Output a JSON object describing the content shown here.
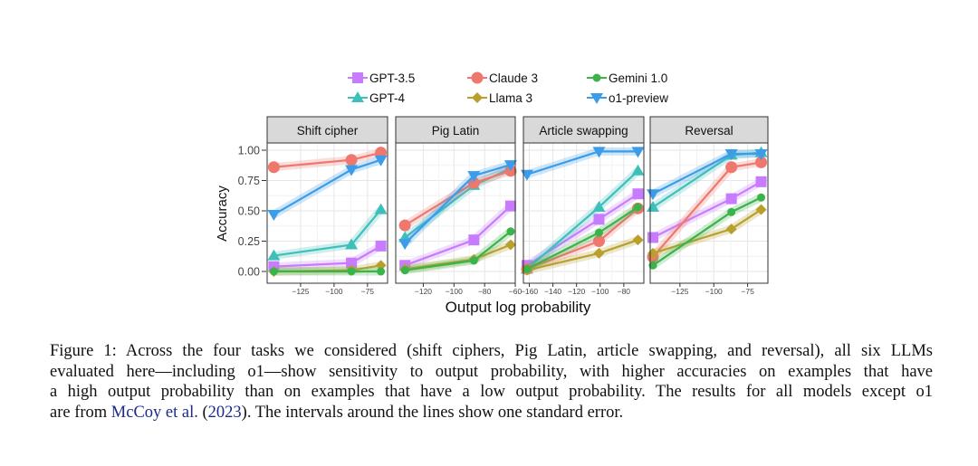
{
  "chart_data": {
    "type": "line",
    "ylabel": "Accuracy",
    "xlabel": "Output log probability",
    "ylim": [
      0,
      1
    ],
    "yticks": [
      "0.00",
      "0.25",
      "0.50",
      "0.75",
      "1.00"
    ],
    "grid": true,
    "legend_placement": "top",
    "legend": [
      {
        "name": "GPT-3.5",
        "color": "#c77cff",
        "marker": "square"
      },
      {
        "name": "Claude 3",
        "color": "#f0776e",
        "marker": "circle"
      },
      {
        "name": "Gemini 1.0",
        "color": "#3cb34a",
        "marker": "dot"
      },
      {
        "name": "GPT-4",
        "color": "#3fbfba",
        "marker": "triangle"
      },
      {
        "name": "Llama 3",
        "color": "#b9a02c",
        "marker": "diamond"
      },
      {
        "name": "o1-preview",
        "color": "#3c9ce8",
        "marker": "triangle-down"
      }
    ],
    "panels": [
      {
        "title": "Shift cipher",
        "xlim": [
          -150,
          -60
        ],
        "xticks": [
          -125,
          -100,
          -75
        ],
        "x": [
          -145,
          -87,
          -65
        ],
        "series": {
          "GPT-3.5": [
            0.04,
            0.07,
            0.21
          ],
          "GPT-4": [
            0.13,
            0.22,
            0.51
          ],
          "Claude 3": [
            0.86,
            0.92,
            0.98
          ],
          "Llama 3": [
            0.0,
            0.01,
            0.05
          ],
          "Gemini 1.0": [
            0.0,
            0.0,
            0.0
          ],
          "o1-preview": [
            0.47,
            0.84,
            0.92
          ]
        }
      },
      {
        "title": "Pig Latin",
        "xlim": [
          -138,
          -60
        ],
        "xticks": [
          -120,
          -100,
          -80,
          -60
        ],
        "x": [
          -132,
          -87,
          -63
        ],
        "series": {
          "GPT-3.5": [
            0.05,
            0.26,
            0.54
          ],
          "GPT-4": [
            0.28,
            0.71,
            0.85
          ],
          "Claude 3": [
            0.38,
            0.73,
            0.83
          ],
          "Llama 3": [
            0.02,
            0.1,
            0.22
          ],
          "Gemini 1.0": [
            0.01,
            0.09,
            0.33
          ],
          "o1-preview": [
            0.23,
            0.79,
            0.88
          ]
        }
      },
      {
        "title": "Article swapping",
        "xlim": [
          -165,
          -63
        ],
        "xticks": [
          -160,
          -140,
          -120,
          -100,
          -80
        ],
        "x": [
          -162,
          -101,
          -68
        ],
        "series": {
          "GPT-3.5": [
            0.05,
            0.43,
            0.64
          ],
          "GPT-4": [
            0.02,
            0.53,
            0.83
          ],
          "Claude 3": [
            0.02,
            0.25,
            0.52
          ],
          "Llama 3": [
            0.01,
            0.15,
            0.26
          ],
          "Gemini 1.0": [
            0.02,
            0.32,
            0.53
          ],
          "o1-preview": [
            0.8,
            0.99,
            0.99
          ]
        }
      },
      {
        "title": "Reversal",
        "xlim": [
          -147,
          -60
        ],
        "xticks": [
          -125,
          -100,
          -75
        ],
        "x": [
          -145,
          -87,
          -65
        ],
        "series": {
          "GPT-3.5": [
            0.28,
            0.6,
            0.74
          ],
          "GPT-4": [
            0.53,
            0.96,
            0.98
          ],
          "Claude 3": [
            0.12,
            0.86,
            0.9
          ],
          "Llama 3": [
            0.15,
            0.35,
            0.51
          ],
          "Gemini 1.0": [
            0.05,
            0.49,
            0.61
          ],
          "o1-preview": [
            0.64,
            0.97,
            0.97
          ]
        }
      }
    ]
  },
  "caption": {
    "lines": [
      "Figure 1: Across the four tasks we considered (shift ciphers, Pig Latin, article swapping, and reversal), all six LLMs",
      "evaluated here—including o1—show sensitivity to output probability, with higher accuracies on examples that have",
      "a high output probability than on examples that have a low output probability. The results for all models except o1"
    ],
    "last_before": "are from ",
    "cite_authors": "McCoy et al.",
    "cite_mid": " (",
    "cite_year": "2023",
    "last_after": "). The intervals around the lines show one standard error."
  }
}
